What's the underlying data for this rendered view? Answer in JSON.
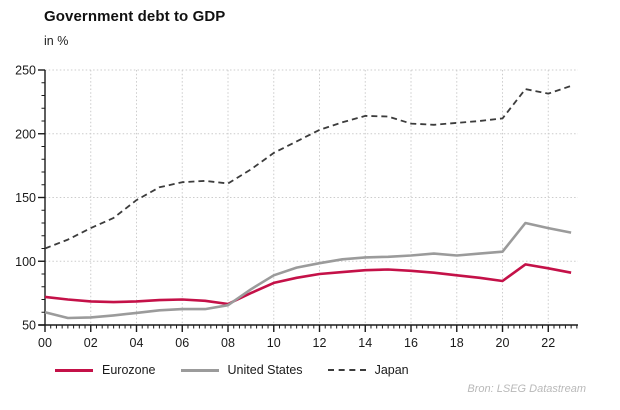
{
  "title": "Government debt to GDP",
  "subtitle": "in %",
  "source": "Bron: LSEG Datastream",
  "colors": {
    "grid": "#cccccc",
    "axis": "#1a1a1a",
    "tick_label": "#1a1a1a",
    "eurozone": "#c41148",
    "united_states": "#9b9b9b",
    "japan": "#3c3c3c",
    "source_text": "#b9b9b9"
  },
  "chart_data": {
    "type": "line",
    "title": "Government debt to GDP",
    "ylabel": "in %",
    "xlabel": "",
    "xlim": [
      2000,
      2023.3
    ],
    "ylim": [
      50,
      250
    ],
    "y_ticks": [
      50,
      100,
      150,
      200,
      250
    ],
    "y_minor_step": 10,
    "x_tick_years": [
      2000,
      2002,
      2004,
      2006,
      2008,
      2010,
      2012,
      2014,
      2016,
      2018,
      2020,
      2022
    ],
    "x_tick_labels": [
      "00",
      "02",
      "04",
      "06",
      "08",
      "10",
      "12",
      "14",
      "16",
      "18",
      "20",
      "22"
    ],
    "x_minor_step": 0.25,
    "grid": {
      "horizontal": "dotted at y major ticks above 50",
      "vertical": "dotted at even years 2002-2022"
    },
    "legend_position": "bottom",
    "x": [
      2000,
      2001,
      2002,
      2003,
      2004,
      2005,
      2006,
      2007,
      2008,
      2009,
      2010,
      2011,
      2012,
      2013,
      2014,
      2015,
      2016,
      2017,
      2018,
      2019,
      2020,
      2021,
      2022,
      2023
    ],
    "series": [
      {
        "name": "Eurozone",
        "color": "#c41148",
        "dash": null,
        "width": 2.6,
        "values": [
          72,
          70,
          68.5,
          68,
          68.5,
          69.5,
          70,
          69,
          66.5,
          75,
          83,
          87,
          90,
          91.5,
          93,
          93.5,
          92.5,
          91,
          89,
          87,
          84.5,
          97.5,
          94.5,
          91
        ]
      },
      {
        "name": "United States",
        "color": "#9b9b9b",
        "dash": null,
        "width": 2.6,
        "values": [
          60,
          55.5,
          56,
          57.5,
          59.5,
          61.5,
          62.5,
          62.5,
          65.5,
          78,
          89,
          95,
          98.5,
          101.5,
          103,
          103.5,
          104.5,
          106,
          104.5,
          106,
          107.5,
          130,
          126,
          122.5
        ]
      },
      {
        "name": "Japan",
        "color": "#3c3c3c",
        "dash": "6 4",
        "width": 1.8,
        "values": [
          110,
          117,
          126,
          134,
          148,
          158,
          162,
          163,
          161,
          172,
          185,
          194,
          203,
          209,
          214,
          213.5,
          208,
          207,
          208.5,
          210,
          212,
          235,
          231.5,
          237.5
        ]
      }
    ]
  }
}
